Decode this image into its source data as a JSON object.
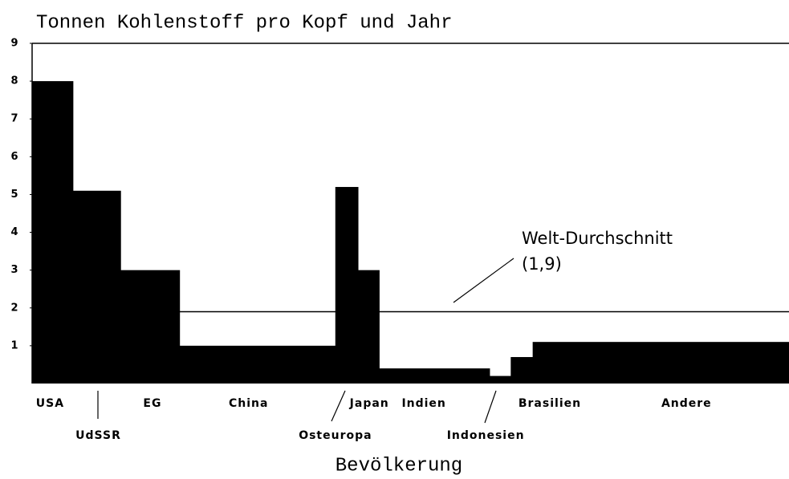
{
  "chart_data": {
    "type": "variwide_bar",
    "title": "Tonnen Kohlenstoff pro Kopf und Jahr",
    "x_label": "Bevölkerung",
    "categories": [
      "USA",
      "UdSSR",
      "EG",
      "China",
      "Osteuropa",
      "Japan",
      "Indien",
      "Indonesien",
      "Brasilien",
      "Andere"
    ],
    "values": [
      8.0,
      5.1,
      3.0,
      1.0,
      5.2,
      3.0,
      0.4,
      0.2,
      0.7,
      1.1
    ],
    "widths": [
      5.4,
      6.3,
      7.8,
      20.6,
      3.0,
      2.8,
      14.6,
      2.8,
      2.9,
      33.9
    ],
    "color": "#000000",
    "ylim": [
      0,
      9
    ],
    "yticks": [
      1,
      2,
      3,
      4,
      5,
      6,
      7,
      8,
      9
    ],
    "reference_line": {
      "value": 1.9,
      "label": "Welt-Durchschnitt",
      "value_label": "(1,9)"
    }
  }
}
